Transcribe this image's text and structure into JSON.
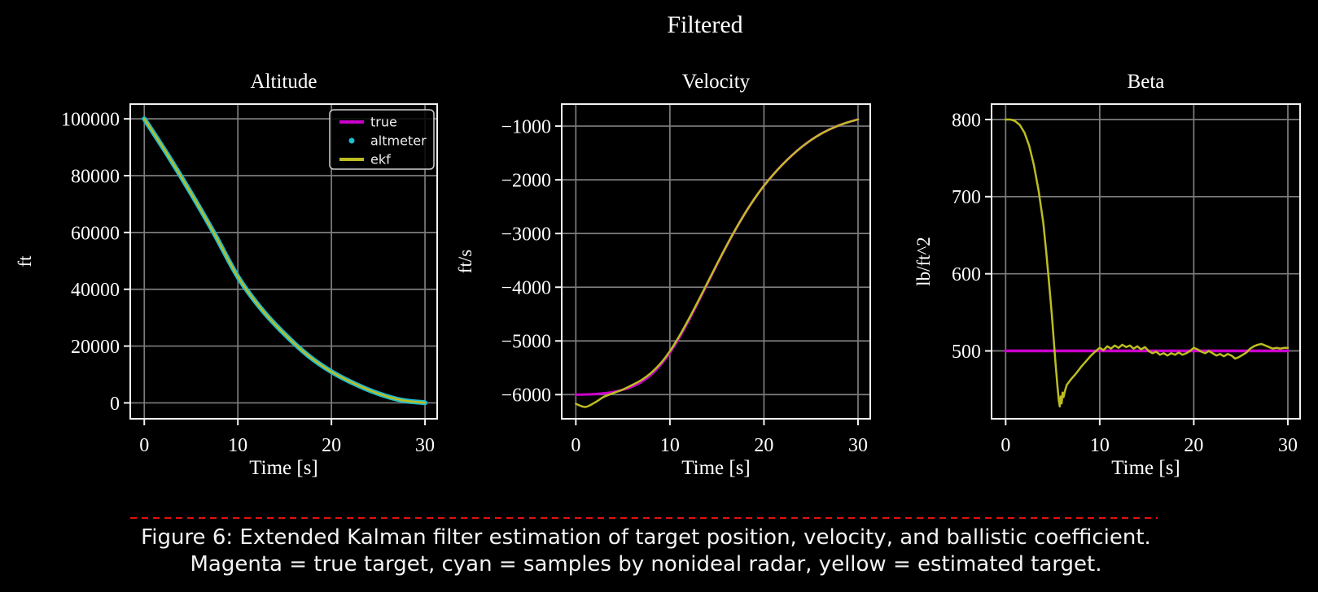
{
  "figure": {
    "suptitle": "Filtered",
    "caption_line1": "Figure 6: Extended Kalman filter estimation of target position, velocity, and ballistic coefficient.",
    "caption_line2": "Magenta = true target, cyan = samples by nonideal radar, yellow = estimated target.",
    "divider_color": "#e31010",
    "background": "#000000"
  },
  "colors": {
    "true": "#cc00cc",
    "altmeter": "#1dbdcf",
    "ekf": "#bcbd22",
    "grid": "#7d7d7d",
    "spine": "#f2f2f2",
    "text": "#ffffff",
    "legend_border": "#cfcfcf"
  },
  "chart_data": [
    {
      "type": "line",
      "title": "Altitude",
      "xlabel": "Time [s]",
      "ylabel": "ft",
      "xlim": [
        -1.5,
        31.3
      ],
      "ylim": [
        -5600,
        105200
      ],
      "xticks": [
        0,
        10,
        20,
        30
      ],
      "xtick_labels": [
        "0",
        "10",
        "20",
        "30"
      ],
      "yticks": [
        0,
        20000,
        40000,
        60000,
        80000,
        100000
      ],
      "ytick_labels": [
        "0",
        "20000",
        "40000",
        "60000",
        "80000",
        "100000"
      ],
      "grid": true,
      "legend_entries": [
        {
          "label": "true",
          "marker": "line",
          "color_key": "true"
        },
        {
          "label": "altmeter",
          "marker": "dot",
          "color_key": "altmeter"
        },
        {
          "label": "ekf",
          "marker": "line",
          "color_key": "ekf"
        }
      ],
      "series": [
        {
          "name": "true",
          "color_key": "true",
          "width": 2.5,
          "smooth": true,
          "x": [
            0,
            2.5,
            5,
            7.5,
            10,
            12.5,
            15,
            17.5,
            20,
            22.5,
            25,
            27.5,
            30
          ],
          "y": [
            100000,
            87300,
            73800,
            59500,
            44400,
            33100,
            24200,
            16700,
            11000,
            6700,
            3300,
            950,
            50
          ]
        },
        {
          "name": "altmeter",
          "color_key": "altmeter",
          "width": 6,
          "smooth": true,
          "x": [
            0,
            2.5,
            5,
            7.5,
            10,
            12.5,
            15,
            17.5,
            20,
            22.5,
            25,
            27.5,
            30
          ],
          "y": [
            100000,
            87300,
            73800,
            59500,
            44400,
            33100,
            24200,
            16700,
            11000,
            6700,
            3300,
            950,
            50
          ]
        },
        {
          "name": "ekf",
          "color_key": "ekf",
          "width": 2.5,
          "smooth": true,
          "x": [
            0,
            2.5,
            5,
            7.5,
            10,
            12.5,
            15,
            17.5,
            20,
            22.5,
            25,
            27.5,
            30
          ],
          "y": [
            100000,
            87300,
            73800,
            59500,
            44400,
            33100,
            24200,
            16700,
            11000,
            6700,
            3300,
            950,
            50
          ]
        }
      ]
    },
    {
      "type": "line",
      "title": "Velocity",
      "xlabel": "Time [s]",
      "ylabel": "ft/s",
      "xlim": [
        -1.5,
        31.3
      ],
      "ylim": [
        -6450,
        -590
      ],
      "xticks": [
        0,
        10,
        20,
        30
      ],
      "xtick_labels": [
        "0",
        "10",
        "20",
        "30"
      ],
      "yticks": [
        -6000,
        -5000,
        -4000,
        -3000,
        -2000,
        -1000
      ],
      "ytick_labels": [
        "−6000",
        "−5000",
        "−4000",
        "−3000",
        "−2000",
        "−1000"
      ],
      "grid": true,
      "series": [
        {
          "name": "true",
          "color_key": "true",
          "width": 3,
          "smooth": true,
          "x": [
            0,
            1,
            2,
            3,
            4,
            5,
            6,
            7,
            8,
            9,
            10,
            11,
            12,
            13,
            14,
            15,
            16,
            17,
            18,
            19,
            20,
            21,
            22,
            23,
            24,
            25,
            26,
            27,
            28,
            29,
            30
          ],
          "y": [
            -6000,
            -5998,
            -5990,
            -5975,
            -5950,
            -5910,
            -5850,
            -5760,
            -5630,
            -5450,
            -5220,
            -4940,
            -4620,
            -4280,
            -3930,
            -3580,
            -3240,
            -2920,
            -2620,
            -2350,
            -2110,
            -1900,
            -1710,
            -1540,
            -1390,
            -1260,
            -1150,
            -1060,
            -985,
            -925,
            -875
          ]
        },
        {
          "name": "ekf",
          "color_key": "ekf",
          "width": 2.5,
          "smooth": true,
          "x": [
            0,
            1,
            2,
            3,
            4,
            5,
            6,
            7,
            8,
            9,
            10,
            11,
            12,
            13,
            14,
            15,
            16,
            17,
            18,
            19,
            20,
            21,
            22,
            23,
            24,
            25,
            26,
            27,
            28,
            29,
            30
          ],
          "y": [
            -6170,
            -6230,
            -6150,
            -6040,
            -5970,
            -5905,
            -5820,
            -5725,
            -5595,
            -5420,
            -5190,
            -4910,
            -4595,
            -4260,
            -3915,
            -3570,
            -3235,
            -2915,
            -2620,
            -2350,
            -2110,
            -1900,
            -1710,
            -1540,
            -1390,
            -1260,
            -1150,
            -1060,
            -985,
            -925,
            -875
          ]
        }
      ]
    },
    {
      "type": "line",
      "title": "Beta",
      "xlabel": "Time [s]",
      "ylabel": "lb/ft^2",
      "xlim": [
        -1.5,
        31.3
      ],
      "ylim": [
        412,
        820
      ],
      "xticks": [
        0,
        10,
        20,
        30
      ],
      "xtick_labels": [
        "0",
        "10",
        "20",
        "30"
      ],
      "yticks": [
        500,
        600,
        700,
        800
      ],
      "ytick_labels": [
        "500",
        "600",
        "700",
        "800"
      ],
      "grid": true,
      "series": [
        {
          "name": "true",
          "color_key": "true",
          "width": 3.5,
          "smooth": false,
          "x": [
            0,
            30
          ],
          "y": [
            500,
            500
          ]
        },
        {
          "name": "ekf",
          "color_key": "ekf",
          "width": 2.5,
          "smooth": false,
          "x": [
            0,
            0.5,
            1,
            1.5,
            2,
            2.5,
            3,
            3.5,
            4,
            4.3,
            4.6,
            4.9,
            5.1,
            5.3,
            5.5,
            5.65,
            5.75,
            5.85,
            5.95,
            6.05,
            6.15,
            6.3,
            6.5,
            7,
            7.5,
            8,
            8.5,
            9,
            9.5,
            10,
            10.4,
            10.8,
            11.2,
            11.6,
            12,
            12.4,
            12.8,
            13.2,
            13.6,
            14,
            14.4,
            14.8,
            15.2,
            15.6,
            16,
            16.4,
            16.8,
            17.2,
            17.6,
            18,
            18.4,
            18.8,
            19.2,
            19.6,
            20,
            20.4,
            20.8,
            21.2,
            21.6,
            22,
            22.4,
            22.8,
            23.2,
            23.6,
            24,
            24.4,
            24.8,
            25.2,
            25.6,
            26,
            26.4,
            26.8,
            27.2,
            27.6,
            28,
            28.4,
            28.8,
            29.2,
            29.6,
            30
          ],
          "y": [
            800,
            800,
            798,
            793,
            783,
            766,
            741,
            708,
            666,
            630,
            590,
            548,
            516,
            484,
            455,
            436,
            428,
            441,
            432,
            446,
            440,
            448,
            456,
            464,
            471,
            479,
            486,
            493,
            499,
            504,
            501,
            506,
            503,
            507,
            504,
            508,
            505,
            507,
            503,
            506,
            502,
            505,
            500,
            497,
            499,
            495,
            497,
            494,
            497,
            495,
            498,
            495,
            497,
            500,
            504,
            502,
            499,
            497,
            500,
            497,
            494,
            496,
            493,
            496,
            494,
            490,
            492,
            495,
            498,
            503,
            506,
            508,
            509,
            507,
            505,
            503,
            504,
            503,
            504,
            504
          ]
        }
      ]
    }
  ]
}
